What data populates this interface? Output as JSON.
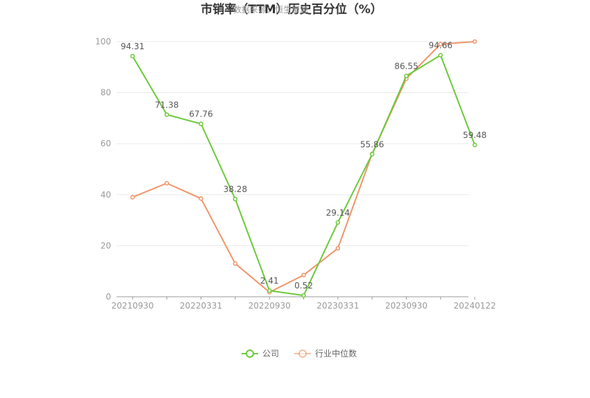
{
  "chart_data": {
    "type": "line",
    "title": "市销率（TTM）历史百分位（%）",
    "watermark": "数据来源：恒生聚源",
    "xlabel": "",
    "ylabel": "",
    "x_tick_labels": [
      "20210930",
      "20220331",
      "20220930",
      "20230331",
      "20230930",
      "20240122"
    ],
    "ylim": [
      0,
      100
    ],
    "y_ticks": [
      0,
      20,
      40,
      60,
      80,
      100
    ],
    "grid": true,
    "legend_position": "bottom",
    "series": [
      {
        "name": "公司",
        "color": "#6cc93a",
        "values": [
          94.31,
          71.38,
          67.76,
          38.28,
          2.41,
          0.52,
          29.14,
          55.86,
          86.55,
          94.66,
          59.48
        ],
        "labels": [
          "94.31",
          "71.38",
          "67.76",
          "38.28",
          "2.41",
          "0.52",
          "29.14",
          "55.86",
          "86.55",
          "94.66",
          "59.48"
        ]
      },
      {
        "name": "行业中位数",
        "color": "#f09468",
        "values": [
          39,
          44.5,
          38.5,
          13,
          1.8,
          8.5,
          19,
          56,
          85.5,
          99,
          100
        ]
      }
    ]
  }
}
